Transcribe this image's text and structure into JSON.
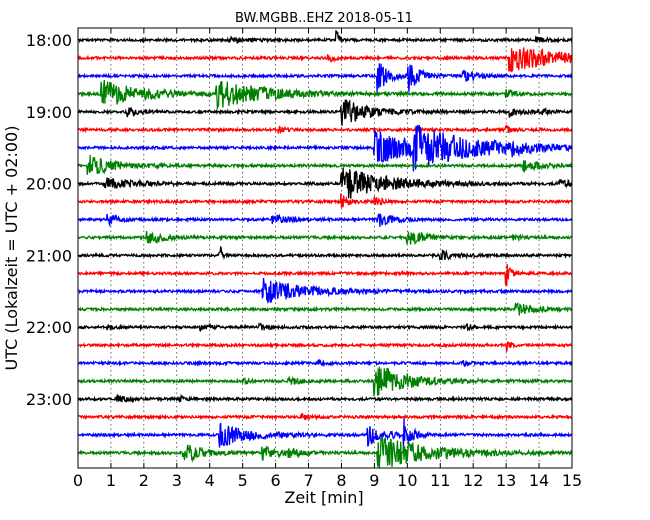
{
  "chart_data": {
    "type": "line",
    "title": "BW.MGBB..EHZ 2018-05-11",
    "xlabel": "Zeit  [min]",
    "ylabel": "UTC (Lokalzeit = UTC + 02:00)",
    "xlim": [
      0,
      15
    ],
    "x_ticks": [
      "0",
      "1",
      "2",
      "3",
      "4",
      "5",
      "6",
      "7",
      "8",
      "9",
      "10",
      "11",
      "12",
      "13",
      "14",
      "15"
    ],
    "y_ticks": [
      {
        "label": "18:00",
        "trace": 0
      },
      {
        "label": "19:00",
        "trace": 4
      },
      {
        "label": "20:00",
        "trace": 8
      },
      {
        "label": "21:00",
        "trace": 12
      },
      {
        "label": "22:00",
        "trace": 16
      },
      {
        "label": "23:00",
        "trace": 20
      }
    ],
    "grid": {
      "vertical_dotted": true
    },
    "trace_minutes": 15,
    "color_cycle": [
      "#000000",
      "#ff0000",
      "#0000ff",
      "#008000"
    ],
    "traces": [
      {
        "start": "18:00",
        "color": "#000000",
        "events": [
          {
            "t": 4.6,
            "amp": 0.45,
            "dur": 0.4
          },
          {
            "t": 13.9,
            "amp": 0.4,
            "dur": 0.3
          },
          {
            "t": 7.85,
            "amp": 2.5,
            "dur": 0.05
          }
        ]
      },
      {
        "start": "18:15",
        "color": "#ff0000",
        "events": [
          {
            "t": 7.6,
            "amp": 0.5,
            "dur": 0.2
          },
          {
            "t": 13.1,
            "amp": 2.0,
            "dur": 1.5
          }
        ]
      },
      {
        "start": "18:30",
        "color": "#0000ff",
        "events": [
          {
            "t": 11.7,
            "amp": 0.9,
            "dur": 0.4
          },
          {
            "t": 9.1,
            "amp": 2.5,
            "dur": 0.3
          },
          {
            "t": 10.0,
            "amp": 2.5,
            "dur": 0.3
          }
        ]
      },
      {
        "start": "18:45",
        "color": "#008000",
        "events": [
          {
            "t": 0.7,
            "amp": 2.0,
            "dur": 1.2
          },
          {
            "t": 4.2,
            "amp": 2.0,
            "dur": 1.5
          },
          {
            "t": 13.0,
            "amp": 0.6,
            "dur": 0.3
          }
        ]
      },
      {
        "start": "19:00",
        "color": "#000000",
        "events": [
          {
            "t": 1.5,
            "amp": 0.6,
            "dur": 0.3
          },
          {
            "t": 8.0,
            "amp": 2.0,
            "dur": 0.8
          },
          {
            "t": 13.1,
            "amp": 0.8,
            "dur": 0.3
          },
          {
            "t": 14.1,
            "amp": 0.5,
            "dur": 0.2
          }
        ]
      },
      {
        "start": "19:15",
        "color": "#ff0000",
        "events": [
          {
            "t": 6.1,
            "amp": 0.4,
            "dur": 0.2
          },
          {
            "t": 13.0,
            "amp": 0.5,
            "dur": 0.2
          }
        ]
      },
      {
        "start": "19:30",
        "color": "#0000ff",
        "events": [
          {
            "t": 9.0,
            "amp": 2.5,
            "dur": 1.2
          },
          {
            "t": 10.2,
            "amp": 2.5,
            "dur": 2.0
          },
          {
            "t": 13.2,
            "amp": 0.6,
            "dur": 0.3
          }
        ]
      },
      {
        "start": "19:45",
        "color": "#008000",
        "events": [
          {
            "t": 0.3,
            "amp": 1.5,
            "dur": 0.8
          },
          {
            "t": 13.5,
            "amp": 1.0,
            "dur": 0.5
          }
        ]
      },
      {
        "start": "20:00",
        "color": "#000000",
        "events": [
          {
            "t": 0.8,
            "amp": 0.8,
            "dur": 1.0
          },
          {
            "t": 8.0,
            "amp": 2.5,
            "dur": 1.3
          },
          {
            "t": 14.6,
            "amp": 0.6,
            "dur": 0.4
          }
        ]
      },
      {
        "start": "20:15",
        "color": "#ff0000",
        "events": [
          {
            "t": 8.0,
            "amp": 1.0,
            "dur": 0.2
          },
          {
            "t": 9.0,
            "amp": 0.8,
            "dur": 0.2
          }
        ]
      },
      {
        "start": "20:30",
        "color": "#0000ff",
        "events": [
          {
            "t": 0.9,
            "amp": 0.8,
            "dur": 0.3
          },
          {
            "t": 5.9,
            "amp": 0.9,
            "dur": 0.4
          },
          {
            "t": 9.1,
            "amp": 1.2,
            "dur": 0.4
          }
        ]
      },
      {
        "start": "20:45",
        "color": "#008000",
        "events": [
          {
            "t": 2.1,
            "amp": 1.0,
            "dur": 0.5
          },
          {
            "t": 10.0,
            "amp": 1.2,
            "dur": 0.5
          },
          {
            "t": 13.2,
            "amp": 0.5,
            "dur": 0.2
          }
        ]
      },
      {
        "start": "21:00",
        "color": "#000000",
        "events": [
          {
            "t": 11.0,
            "amp": 0.7,
            "dur": 0.4
          },
          {
            "t": 4.3,
            "amp": 2.5,
            "dur": 0.05
          }
        ]
      },
      {
        "start": "21:15",
        "color": "#ff0000",
        "events": [
          {
            "t": 13.0,
            "amp": 2.0,
            "dur": 0.1
          }
        ]
      },
      {
        "start": "21:30",
        "color": "#0000ff",
        "events": [
          {
            "t": 5.6,
            "amp": 1.8,
            "dur": 1.2
          }
        ]
      },
      {
        "start": "21:45",
        "color": "#008000",
        "events": [
          {
            "t": 13.3,
            "amp": 0.9,
            "dur": 0.5
          }
        ]
      },
      {
        "start": "22:00",
        "color": "#000000",
        "events": [
          {
            "t": 0.9,
            "amp": 0.3,
            "dur": 0.2
          },
          {
            "t": 3.7,
            "amp": 0.5,
            "dur": 0.3
          },
          {
            "t": 5.5,
            "amp": 0.4,
            "dur": 0.3
          },
          {
            "t": 11.8,
            "amp": 0.4,
            "dur": 0.2
          }
        ]
      },
      {
        "start": "22:15",
        "color": "#ff0000",
        "events": [
          {
            "t": 13.0,
            "amp": 1.0,
            "dur": 0.1
          }
        ]
      },
      {
        "start": "22:30",
        "color": "#0000ff",
        "events": [
          {
            "t": 7.3,
            "amp": 0.4,
            "dur": 0.2
          },
          {
            "t": 11.7,
            "amp": 0.4,
            "dur": 0.2
          }
        ]
      },
      {
        "start": "22:45",
        "color": "#008000",
        "events": [
          {
            "t": 5.0,
            "amp": 0.4,
            "dur": 0.2
          },
          {
            "t": 6.4,
            "amp": 0.6,
            "dur": 0.3
          },
          {
            "t": 9.0,
            "amp": 2.5,
            "dur": 1.0
          }
        ]
      },
      {
        "start": "23:00",
        "color": "#000000",
        "events": [
          {
            "t": 1.2,
            "amp": 0.5,
            "dur": 0.3
          },
          {
            "t": 3.1,
            "amp": 0.4,
            "dur": 0.2
          }
        ]
      },
      {
        "start": "23:15",
        "color": "#ff0000",
        "events": [
          {
            "t": 6.8,
            "amp": 0.5,
            "dur": 0.2
          }
        ]
      },
      {
        "start": "23:30",
        "color": "#0000ff",
        "events": [
          {
            "t": 4.3,
            "amp": 1.8,
            "dur": 0.9
          },
          {
            "t": 8.8,
            "amp": 1.5,
            "dur": 0.5
          },
          {
            "t": 9.9,
            "amp": 2.5,
            "dur": 0.2
          }
        ]
      },
      {
        "start": "23:45",
        "color": "#008000",
        "events": [
          {
            "t": 3.2,
            "amp": 1.5,
            "dur": 0.6
          },
          {
            "t": 5.6,
            "amp": 1.0,
            "dur": 0.5
          },
          {
            "t": 9.1,
            "amp": 2.5,
            "dur": 1.5
          },
          {
            "t": 6.4,
            "amp": 0.7,
            "dur": 0.3
          }
        ]
      }
    ]
  }
}
